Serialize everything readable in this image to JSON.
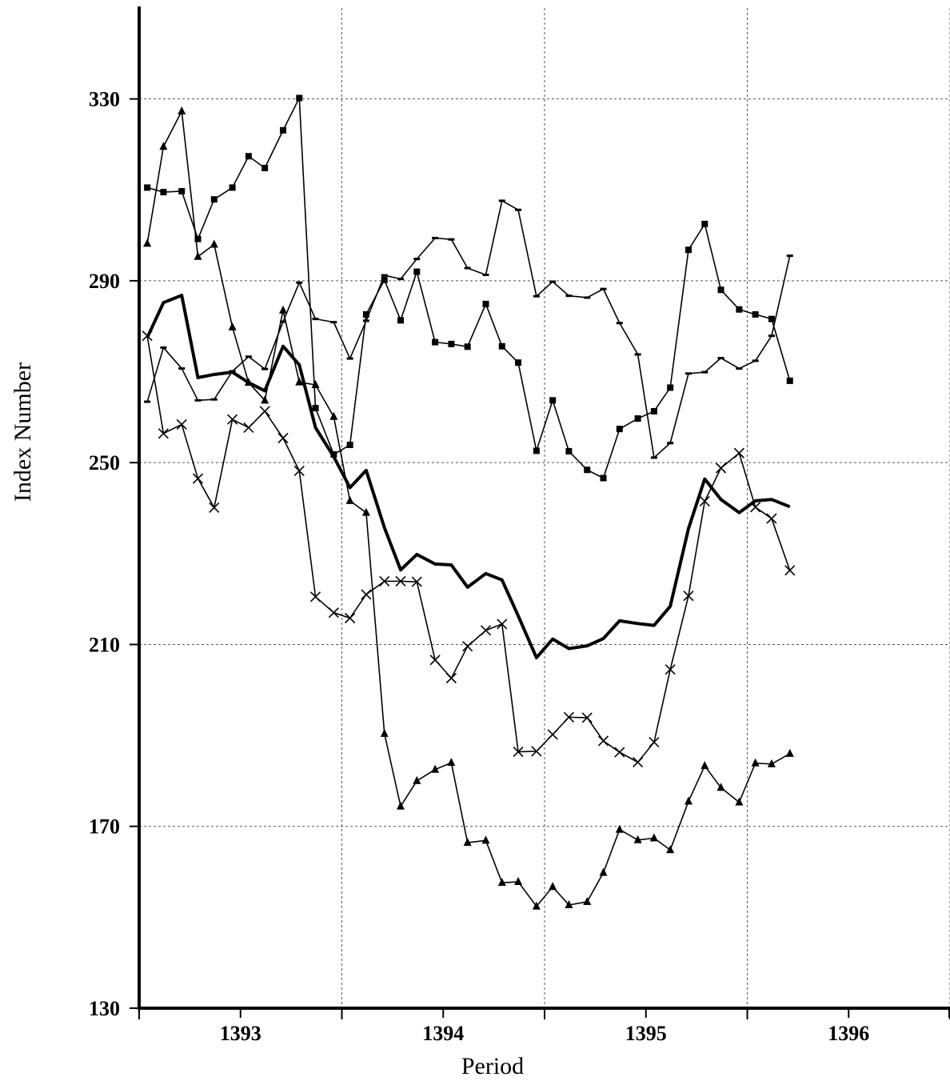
{
  "chart_data": {
    "type": "line",
    "title": "",
    "xlabel": "Period",
    "ylabel": "Index Number",
    "ylim": [
      130,
      350
    ],
    "xlim": [
      1392.5,
      1396.5
    ],
    "yticks": [
      130,
      170,
      210,
      250,
      290,
      330
    ],
    "xticks": [
      1393,
      1394,
      1395,
      1396
    ],
    "grid": true,
    "x": [
      1392.54,
      1392.62,
      1392.71,
      1392.79,
      1392.87,
      1392.96,
      1393.04,
      1393.12,
      1393.21,
      1393.29,
      1393.37,
      1393.46,
      1393.54,
      1393.62,
      1393.71,
      1393.79,
      1393.87,
      1393.96,
      1394.04,
      1394.12,
      1394.21,
      1394.29,
      1394.37,
      1394.46,
      1394.54,
      1394.62,
      1394.71,
      1394.79,
      1394.87,
      1394.96,
      1395.04,
      1395.12,
      1395.21,
      1395.29,
      1395.37,
      1395.46,
      1395.54,
      1395.62,
      1395.71
    ],
    "series": [
      {
        "marker": "square",
        "style": "thin",
        "values": [
          310.5,
          309.5,
          309.7,
          299.2,
          307.9,
          310.5,
          317.4,
          314.8,
          323.1,
          330.2,
          262.0,
          251.8,
          253.9,
          282.6,
          290.2,
          281.3,
          292.0,
          276.5,
          276.1,
          275.5,
          284.9,
          275.6,
          272.0,
          252.6,
          263.7,
          252.5,
          248.4,
          246.6,
          257.4,
          259.7,
          261.3,
          266.5,
          296.8,
          302.5,
          288.0,
          283.7,
          282.6,
          281.6,
          268.0
        ]
      },
      {
        "marker": "dash",
        "style": "thin",
        "values": [
          263.4,
          275.3,
          270.7,
          263.7,
          263.9,
          270.1,
          273.3,
          270.6,
          281.0,
          289.6,
          281.6,
          280.9,
          272.9,
          281.2,
          291.2,
          290.4,
          294.8,
          299.4,
          299.1,
          292.8,
          291.3,
          307.6,
          305.6,
          286.6,
          289.8,
          286.7,
          286.3,
          288.2,
          280.7,
          273.8,
          251.1,
          254.3,
          269.6,
          269.9,
          273.0,
          270.7,
          272.4,
          277.9,
          295.5
        ]
      },
      {
        "marker": "triangle",
        "style": "thin",
        "values": [
          298.2,
          319.5,
          327.3,
          295.3,
          298.0,
          279.8,
          267.6,
          263.7,
          283.5,
          267.7,
          267.1,
          260.1,
          241.6,
          239.0,
          190.4,
          174.4,
          180.0,
          182.5,
          184.0,
          166.4,
          166.9,
          157.6,
          157.8,
          152.4,
          156.7,
          152.7,
          153.4,
          159.8,
          169.3,
          167.0,
          167.4,
          164.8,
          175.5,
          183.3,
          178.5,
          175.3,
          183.9,
          183.7,
          186.0
        ]
      },
      {
        "marker": "x",
        "style": "thin",
        "values": [
          277.9,
          256.4,
          258.4,
          246.5,
          240.1,
          259.5,
          257.7,
          261.3,
          255.4,
          248.2,
          220.5,
          217.0,
          215.8,
          221.0,
          223.9,
          223.9,
          223.8,
          206.6,
          202.6,
          209.6,
          213.1,
          214.5,
          186.4,
          186.5,
          190.2,
          194.0,
          193.9,
          188.8,
          186.3,
          184.1,
          188.5,
          204.5,
          220.7,
          241.5,
          248.8,
          252.1,
          240.2,
          237.7,
          226.3
        ]
      },
      {
        "marker": "none",
        "style": "bold",
        "values": [
          277.5,
          285.2,
          286.8,
          268.7,
          269.4,
          269.9,
          267.6,
          265.8,
          275.6,
          271.5,
          257.7,
          251.3,
          244.5,
          248.3,
          235.7,
          226.4,
          229.8,
          227.7,
          227.5,
          222.6,
          225.6,
          224.2,
          216.3,
          207.1,
          211.2,
          209.1,
          209.7,
          211.3,
          215.2,
          214.6,
          214.2,
          218.4,
          235.5,
          246.4,
          241.9,
          239.0,
          241.6,
          241.9,
          240.3
        ]
      }
    ]
  }
}
